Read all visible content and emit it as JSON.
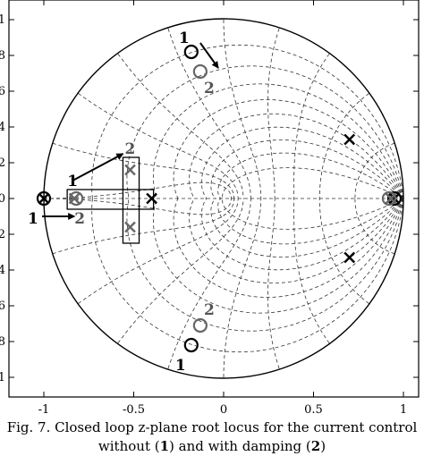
{
  "chart_data": {
    "type": "scatter",
    "title": "",
    "xlabel": "",
    "ylabel": "",
    "xlim": [
      -1.1,
      1.1
    ],
    "ylim": [
      -1.1,
      1.1
    ],
    "grid": "z-plane constant damping and natural frequency curves (dashed)",
    "x_ticks": [
      -1,
      -0.5,
      0,
      0.5,
      1
    ],
    "x_tick_labels": [
      "-1",
      "-0.5",
      "0",
      "0.5",
      "1"
    ],
    "y_ticks": [
      1,
      0.8,
      0.6,
      0.4,
      0.2,
      0,
      -0.2,
      -0.4,
      -0.6,
      -0.8,
      -1
    ],
    "y_tick_labels": [
      "1",
      "0.8",
      "0.6",
      "0.4",
      "0.2",
      "0",
      "-0.2",
      "-0.4",
      "-0.6",
      "-0.8",
      "-1"
    ],
    "series": [
      {
        "name": "1",
        "color": "#000000",
        "poles": [
          [
            -1.0,
            0.0
          ],
          [
            -0.4,
            0.0
          ],
          [
            0.7,
            0.33
          ],
          [
            0.7,
            -0.33
          ],
          [
            0.95,
            0.0
          ]
        ],
        "zeros": [
          [
            -1.0,
            0.0
          ],
          [
            -0.18,
            0.82
          ],
          [
            -0.18,
            -0.82
          ],
          [
            0.95,
            0.0
          ]
        ]
      },
      {
        "name": "2",
        "color": "#666666",
        "poles": [
          [
            -0.83,
            0.0
          ],
          [
            -0.52,
            0.16
          ],
          [
            -0.52,
            -0.16
          ],
          [
            0.93,
            0.0
          ]
        ],
        "zeros": [
          [
            -0.82,
            0.0
          ],
          [
            -0.13,
            0.71
          ],
          [
            -0.13,
            -0.71
          ],
          [
            0.92,
            0.0
          ]
        ]
      }
    ],
    "annotations": [
      {
        "text": "1",
        "x": -0.22,
        "y": 0.9
      },
      {
        "text": "2",
        "x": -0.08,
        "y": 0.62
      },
      {
        "text": "1",
        "x": -0.84,
        "y": 0.1
      },
      {
        "text": "2",
        "x": -0.52,
        "y": 0.28
      },
      {
        "text": "1",
        "x": -1.06,
        "y": -0.11
      },
      {
        "text": "2",
        "x": -0.8,
        "y": -0.11
      },
      {
        "text": "2",
        "x": -0.08,
        "y": -0.62
      },
      {
        "text": "1",
        "x": -0.24,
        "y": -0.93
      }
    ]
  },
  "caption": {
    "line1": "Fig. 7. Closed loop z-plane root locus for the current control",
    "line2_pre": "without (",
    "line2_b1": "1",
    "line2_mid": ") and with damping (",
    "line2_b2": "2",
    "line2_post": ")"
  }
}
